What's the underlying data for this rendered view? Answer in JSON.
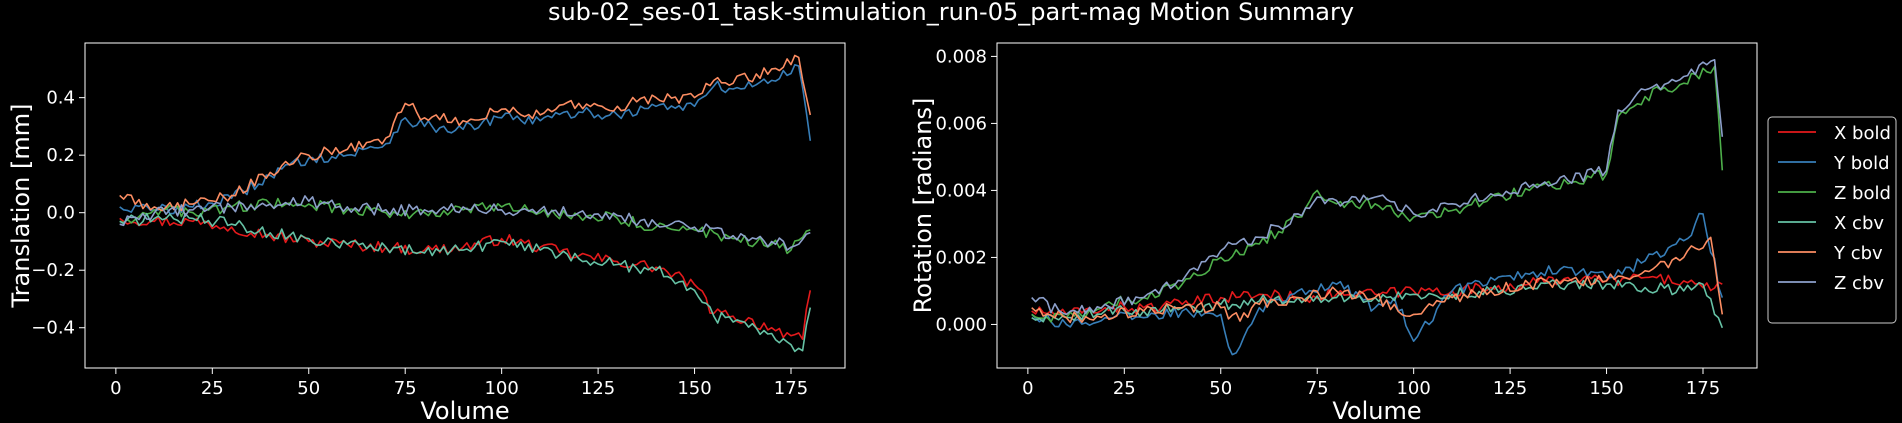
{
  "title": "sub-02_ses-01_task-stimulation_run-05_part-mag Motion Summary",
  "colors": {
    "background": "#000000",
    "axes": "#ffffff",
    "X bold": "#e41a1c",
    "Y bold": "#377eb8",
    "Z bold": "#4daf4a",
    "X cbv": "#66c2a5",
    "Y cbv": "#fc8d62",
    "Z cbv": "#8da0cb"
  },
  "legend": {
    "placement": "right-outside",
    "entries": [
      "X bold",
      "Y bold",
      "Z bold",
      "X cbv",
      "Y cbv",
      "Z cbv"
    ]
  },
  "chart_data": [
    {
      "type": "line",
      "xlabel": "Volume",
      "ylabel": "Translation [mm]",
      "xlim": [
        -8,
        189
      ],
      "ylim": [
        -0.54,
        0.59
      ],
      "xticks": [
        0,
        25,
        50,
        75,
        100,
        125,
        150,
        175
      ],
      "yticks": [
        -0.4,
        -0.2,
        0.0,
        0.2,
        0.4
      ],
      "ytick_labels": [
        "−0.4",
        "−0.2",
        "0.0",
        "0.2",
        "0.4"
      ],
      "grid": false,
      "x_range": [
        1,
        180
      ],
      "series": [
        {
          "name": "X bold",
          "points": [
            [
              1,
              -0.02
            ],
            [
              10,
              -0.03
            ],
            [
              20,
              -0.03
            ],
            [
              30,
              -0.05
            ],
            [
              40,
              -0.08
            ],
            [
              50,
              -0.1
            ],
            [
              60,
              -0.11
            ],
            [
              70,
              -0.12
            ],
            [
              80,
              -0.13
            ],
            [
              90,
              -0.12
            ],
            [
              100,
              -0.09
            ],
            [
              110,
              -0.12
            ],
            [
              120,
              -0.15
            ],
            [
              130,
              -0.17
            ],
            [
              140,
              -0.19
            ],
            [
              150,
              -0.25
            ],
            [
              155,
              -0.35
            ],
            [
              160,
              -0.36
            ],
            [
              170,
              -0.4
            ],
            [
              178,
              -0.44
            ],
            [
              180,
              -0.27
            ]
          ]
        },
        {
          "name": "Y bold",
          "points": [
            [
              1,
              0.02
            ],
            [
              10,
              0.01
            ],
            [
              20,
              0.02
            ],
            [
              30,
              0.05
            ],
            [
              40,
              0.13
            ],
            [
              50,
              0.19
            ],
            [
              60,
              0.2
            ],
            [
              70,
              0.24
            ],
            [
              75,
              0.33
            ],
            [
              80,
              0.3
            ],
            [
              90,
              0.29
            ],
            [
              100,
              0.33
            ],
            [
              110,
              0.32
            ],
            [
              120,
              0.35
            ],
            [
              130,
              0.34
            ],
            [
              140,
              0.37
            ],
            [
              150,
              0.37
            ],
            [
              155,
              0.44
            ],
            [
              160,
              0.43
            ],
            [
              170,
              0.46
            ],
            [
              177,
              0.51
            ],
            [
              180,
              0.25
            ]
          ]
        },
        {
          "name": "Z bold",
          "points": [
            [
              1,
              -0.03
            ],
            [
              10,
              0.01
            ],
            [
              20,
              0.0
            ],
            [
              30,
              0.02
            ],
            [
              40,
              0.03
            ],
            [
              50,
              0.03
            ],
            [
              60,
              0.01
            ],
            [
              70,
              0.0
            ],
            [
              80,
              0.0
            ],
            [
              90,
              0.01
            ],
            [
              100,
              0.02
            ],
            [
              110,
              0.0
            ],
            [
              120,
              -0.01
            ],
            [
              130,
              -0.02
            ],
            [
              140,
              -0.05
            ],
            [
              150,
              -0.06
            ],
            [
              160,
              -0.09
            ],
            [
              170,
              -0.11
            ],
            [
              175,
              -0.13
            ],
            [
              180,
              -0.06
            ]
          ]
        },
        {
          "name": "X cbv",
          "points": [
            [
              1,
              -0.03
            ],
            [
              10,
              -0.02
            ],
            [
              20,
              -0.02
            ],
            [
              30,
              -0.04
            ],
            [
              40,
              -0.07
            ],
            [
              50,
              -0.09
            ],
            [
              60,
              -0.11
            ],
            [
              70,
              -0.12
            ],
            [
              80,
              -0.14
            ],
            [
              90,
              -0.13
            ],
            [
              100,
              -0.1
            ],
            [
              110,
              -0.13
            ],
            [
              120,
              -0.16
            ],
            [
              130,
              -0.18
            ],
            [
              140,
              -0.2
            ],
            [
              150,
              -0.27
            ],
            [
              155,
              -0.36
            ],
            [
              160,
              -0.38
            ],
            [
              170,
              -0.42
            ],
            [
              178,
              -0.48
            ],
            [
              180,
              -0.33
            ]
          ]
        },
        {
          "name": "Y cbv",
          "points": [
            [
              1,
              0.06
            ],
            [
              10,
              0.02
            ],
            [
              20,
              0.03
            ],
            [
              30,
              0.06
            ],
            [
              40,
              0.14
            ],
            [
              50,
              0.2
            ],
            [
              60,
              0.22
            ],
            [
              70,
              0.26
            ],
            [
              75,
              0.38
            ],
            [
              80,
              0.33
            ],
            [
              90,
              0.32
            ],
            [
              100,
              0.36
            ],
            [
              110,
              0.34
            ],
            [
              120,
              0.38
            ],
            [
              130,
              0.37
            ],
            [
              140,
              0.4
            ],
            [
              150,
              0.4
            ],
            [
              155,
              0.46
            ],
            [
              160,
              0.45
            ],
            [
              170,
              0.5
            ],
            [
              177,
              0.54
            ],
            [
              180,
              0.34
            ]
          ]
        },
        {
          "name": "Z cbv",
          "points": [
            [
              1,
              -0.04
            ],
            [
              10,
              0.0
            ],
            [
              20,
              0.01
            ],
            [
              30,
              0.02
            ],
            [
              40,
              0.03
            ],
            [
              50,
              0.04
            ],
            [
              60,
              0.02
            ],
            [
              70,
              0.01
            ],
            [
              80,
              0.01
            ],
            [
              90,
              0.02
            ],
            [
              100,
              0.01
            ],
            [
              110,
              0.01
            ],
            [
              120,
              0.0
            ],
            [
              130,
              -0.01
            ],
            [
              140,
              -0.04
            ],
            [
              150,
              -0.05
            ],
            [
              160,
              -0.08
            ],
            [
              170,
              -0.1
            ],
            [
              175,
              -0.12
            ],
            [
              180,
              -0.07
            ]
          ]
        }
      ]
    },
    {
      "type": "line",
      "xlabel": "Volume",
      "ylabel": "Rotation [radians]",
      "xlim": [
        -8,
        189
      ],
      "ylim": [
        -0.0013,
        0.0084
      ],
      "xticks": [
        0,
        25,
        50,
        75,
        100,
        125,
        150,
        175
      ],
      "yticks": [
        0.0,
        0.002,
        0.004,
        0.006,
        0.008
      ],
      "ytick_labels": [
        "0.000",
        "0.002",
        "0.004",
        "0.006",
        "0.008"
      ],
      "grid": false,
      "x_range": [
        1,
        180
      ],
      "series": [
        {
          "name": "X bold",
          "points": [
            [
              1,
              0.0004
            ],
            [
              10,
              0.0003
            ],
            [
              20,
              0.0005
            ],
            [
              30,
              0.0005
            ],
            [
              40,
              0.0006
            ],
            [
              50,
              0.0008
            ],
            [
              60,
              0.0009
            ],
            [
              70,
              0.0008
            ],
            [
              80,
              0.0009
            ],
            [
              90,
              0.0009
            ],
            [
              100,
              0.001
            ],
            [
              110,
              0.001
            ],
            [
              120,
              0.0011
            ],
            [
              130,
              0.0012
            ],
            [
              140,
              0.0014
            ],
            [
              150,
              0.0013
            ],
            [
              160,
              0.0014
            ],
            [
              170,
              0.0013
            ],
            [
              175,
              0.0011
            ],
            [
              180,
              0.0012
            ]
          ]
        },
        {
          "name": "Y bold",
          "points": [
            [
              1,
              0.0003
            ],
            [
              10,
              0.0
            ],
            [
              20,
              0.0002
            ],
            [
              30,
              0.0002
            ],
            [
              40,
              0.0004
            ],
            [
              50,
              0.0003
            ],
            [
              53,
              -0.0009
            ],
            [
              60,
              0.0005
            ],
            [
              70,
              0.001
            ],
            [
              80,
              0.0012
            ],
            [
              90,
              0.0005
            ],
            [
              95,
              0.0008
            ],
            [
              100,
              -0.0005
            ],
            [
              110,
              0.001
            ],
            [
              120,
              0.0014
            ],
            [
              130,
              0.0015
            ],
            [
              140,
              0.0017
            ],
            [
              150,
              0.0014
            ],
            [
              160,
              0.0019
            ],
            [
              170,
              0.0025
            ],
            [
              175,
              0.0033
            ],
            [
              180,
              0.0008
            ]
          ]
        },
        {
          "name": "Z bold",
          "points": [
            [
              1,
              0.0003
            ],
            [
              10,
              0.0002
            ],
            [
              20,
              0.0006
            ],
            [
              30,
              0.0008
            ],
            [
              40,
              0.0012
            ],
            [
              50,
              0.002
            ],
            [
              60,
              0.0024
            ],
            [
              70,
              0.0032
            ],
            [
              75,
              0.004
            ],
            [
              80,
              0.0036
            ],
            [
              90,
              0.0036
            ],
            [
              100,
              0.0032
            ],
            [
              110,
              0.0034
            ],
            [
              120,
              0.0038
            ],
            [
              130,
              0.004
            ],
            [
              140,
              0.0042
            ],
            [
              150,
              0.0045
            ],
            [
              153,
              0.0062
            ],
            [
              160,
              0.0068
            ],
            [
              170,
              0.0072
            ],
            [
              178,
              0.0077
            ],
            [
              180,
              0.0046
            ]
          ]
        },
        {
          "name": "X cbv",
          "points": [
            [
              1,
              0.0002
            ],
            [
              10,
              0.0002
            ],
            [
              20,
              0.0004
            ],
            [
              30,
              0.0004
            ],
            [
              40,
              0.0005
            ],
            [
              50,
              0.0006
            ],
            [
              60,
              0.0007
            ],
            [
              70,
              0.0008
            ],
            [
              80,
              0.0008
            ],
            [
              90,
              0.0008
            ],
            [
              100,
              0.0009
            ],
            [
              110,
              0.0009
            ],
            [
              120,
              0.001
            ],
            [
              130,
              0.0011
            ],
            [
              140,
              0.0012
            ],
            [
              150,
              0.0012
            ],
            [
              160,
              0.0011
            ],
            [
              170,
              0.001
            ],
            [
              175,
              0.0012
            ],
            [
              180,
              -0.0001
            ]
          ]
        },
        {
          "name": "Y cbv",
          "points": [
            [
              1,
              0.0005
            ],
            [
              10,
              0.0002
            ],
            [
              20,
              0.0003
            ],
            [
              30,
              0.0004
            ],
            [
              40,
              0.0005
            ],
            [
              50,
              0.0005
            ],
            [
              55,
              0.0001
            ],
            [
              60,
              0.0006
            ],
            [
              70,
              0.0008
            ],
            [
              80,
              0.001
            ],
            [
              90,
              0.0008
            ],
            [
              100,
              0.0003
            ],
            [
              110,
              0.0008
            ],
            [
              120,
              0.001
            ],
            [
              130,
              0.0012
            ],
            [
              140,
              0.0013
            ],
            [
              150,
              0.0013
            ],
            [
              160,
              0.0016
            ],
            [
              170,
              0.002
            ],
            [
              177,
              0.0026
            ],
            [
              180,
              0.0003
            ]
          ]
        },
        {
          "name": "Z cbv",
          "points": [
            [
              1,
              0.0008
            ],
            [
              10,
              0.0003
            ],
            [
              20,
              0.0006
            ],
            [
              30,
              0.0008
            ],
            [
              40,
              0.0013
            ],
            [
              50,
              0.0022
            ],
            [
              60,
              0.0026
            ],
            [
              70,
              0.0033
            ],
            [
              75,
              0.0038
            ],
            [
              80,
              0.0037
            ],
            [
              90,
              0.0038
            ],
            [
              100,
              0.0033
            ],
            [
              110,
              0.0036
            ],
            [
              120,
              0.0039
            ],
            [
              130,
              0.0041
            ],
            [
              140,
              0.0043
            ],
            [
              150,
              0.0046
            ],
            [
              153,
              0.0064
            ],
            [
              160,
              0.007
            ],
            [
              170,
              0.0074
            ],
            [
              178,
              0.0079
            ],
            [
              180,
              0.0056
            ]
          ]
        }
      ]
    }
  ]
}
